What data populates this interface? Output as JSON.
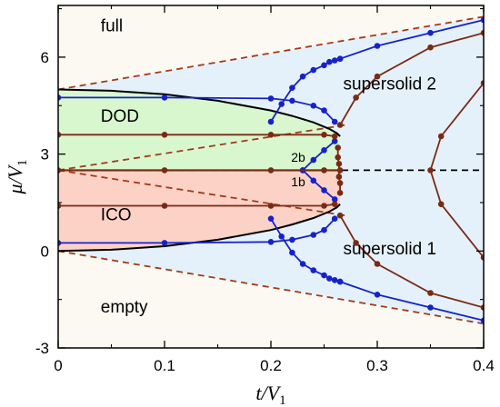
{
  "chart_data": {
    "type": "line",
    "title": "",
    "xlabel": {
      "main": "t/V",
      "sub": "1"
    },
    "ylabel": {
      "main": "μ/V",
      "sub": "1"
    },
    "xlim": [
      0,
      0.4
    ],
    "ylim": [
      -3,
      7.6
    ],
    "x_ticks": [
      0,
      0.1,
      0.2,
      0.3,
      0.4
    ],
    "x_tick_labels": [
      "0",
      "0.1",
      "0.2",
      "0.3",
      "0.4"
    ],
    "y_ticks": [
      -3,
      0,
      3,
      6
    ],
    "y_tick_labels": [
      "-3",
      "0",
      "3",
      "6"
    ],
    "grid": false,
    "colors": {
      "background_full": "#fbf9f2",
      "supersolid_fill": "#e5f1fa",
      "dod_fill": "#d9f7cf",
      "ico_fill": "#fcd2c6",
      "blue": "#1522cc",
      "brown": "#7a2a14",
      "dashed_brown": "#a33a17",
      "black": "#000000"
    },
    "regions": [
      {
        "id": "full",
        "label": "full",
        "at": [
          0.04,
          6.8
        ]
      },
      {
        "id": "dod",
        "label": "DOD",
        "at": [
          0.04,
          4.0
        ]
      },
      {
        "id": "ico",
        "label": "ICO",
        "at": [
          0.04,
          0.95
        ]
      },
      {
        "id": "empty",
        "label": "empty",
        "at": [
          0.04,
          -1.9
        ]
      },
      {
        "id": "supersolid2",
        "label": "supersolid 2",
        "at": [
          0.268,
          5.0
        ]
      },
      {
        "id": "supersolid1",
        "label": "supersolid 1",
        "at": [
          0.268,
          -0.1
        ]
      }
    ],
    "small_labels": [
      {
        "id": "2b",
        "label": "2b",
        "at": [
          0.219,
          2.76
        ]
      },
      {
        "id": "1b",
        "label": "1b",
        "at": [
          0.219,
          2.0
        ]
      }
    ],
    "series": [
      {
        "kind": "dashed",
        "color": "dashed_brown",
        "x": [
          0,
          0.4
        ],
        "y": [
          5.0,
          7.25
        ]
      },
      {
        "kind": "dashed",
        "color": "dashed_brown",
        "x": [
          0,
          0.4
        ],
        "y": [
          0.0,
          -2.25
        ]
      },
      {
        "kind": "dashed",
        "color": "black",
        "x": [
          0,
          0.4
        ],
        "y": [
          2.5,
          2.5
        ]
      },
      {
        "kind": "dashed",
        "color": "dashed_brown",
        "x": [
          0,
          0.27
        ],
        "y": [
          2.5,
          3.9
        ]
      },
      {
        "kind": "dashed",
        "color": "dashed_brown",
        "x": [
          0,
          0.27
        ],
        "y": [
          2.5,
          1.1
        ]
      },
      {
        "kind": "line",
        "color": "black",
        "x": [
          0,
          0.05,
          0.1,
          0.15,
          0.2,
          0.22,
          0.24,
          0.255,
          0.262,
          0.265
        ],
        "y": [
          5.0,
          4.96,
          4.85,
          4.65,
          4.35,
          4.18,
          3.98,
          3.78,
          3.65,
          3.55
        ]
      },
      {
        "kind": "line",
        "color": "black",
        "x": [
          0,
          0.05,
          0.1,
          0.15,
          0.2,
          0.22,
          0.24,
          0.255,
          0.262,
          0.265
        ],
        "y": [
          0.0,
          0.04,
          0.15,
          0.35,
          0.65,
          0.82,
          1.02,
          1.22,
          1.35,
          1.45
        ]
      },
      {
        "kind": "line",
        "color": "black",
        "x": [
          0,
          0.265
        ],
        "y": [
          2.5,
          2.5
        ]
      },
      {
        "kind": "marked",
        "color": "blue",
        "x": [
          0,
          0.1,
          0.2,
          0.22,
          0.24,
          0.25,
          0.26
        ],
        "y": [
          4.75,
          4.75,
          4.72,
          4.65,
          4.5,
          4.35,
          4.0
        ]
      },
      {
        "kind": "marked",
        "color": "blue",
        "x": [
          0,
          0.1,
          0.2,
          0.22,
          0.24,
          0.25,
          0.26
        ],
        "y": [
          0.25,
          0.25,
          0.28,
          0.35,
          0.5,
          0.65,
          1.0
        ]
      },
      {
        "kind": "marked",
        "color": "blue",
        "x": [
          0.2,
          0.21,
          0.22,
          0.23,
          0.24,
          0.25,
          0.255,
          0.26,
          0.265
        ],
        "y": [
          4.0,
          4.55,
          5.05,
          5.4,
          5.6,
          5.75,
          5.85,
          5.9,
          5.95
        ]
      },
      {
        "kind": "marked",
        "color": "blue",
        "x": [
          0.265,
          0.3,
          0.35,
          0.4
        ],
        "y": [
          5.95,
          6.35,
          6.75,
          7.15
        ]
      },
      {
        "kind": "marked",
        "color": "blue",
        "x": [
          0.2,
          0.21,
          0.22,
          0.23,
          0.24,
          0.25,
          0.255,
          0.26,
          0.265
        ],
        "y": [
          1.0,
          0.45,
          -0.05,
          -0.4,
          -0.6,
          -0.75,
          -0.85,
          -0.9,
          -0.95
        ]
      },
      {
        "kind": "marked",
        "color": "blue",
        "x": [
          0.265,
          0.3,
          0.35,
          0.4
        ],
        "y": [
          -0.95,
          -1.35,
          -1.75,
          -2.15
        ]
      },
      {
        "kind": "marked",
        "color": "blue",
        "x": [
          0.23,
          0.24,
          0.25,
          0.26
        ],
        "y": [
          2.5,
          2.82,
          3.12,
          3.4
        ]
      },
      {
        "kind": "marked",
        "color": "blue",
        "x": [
          0.23,
          0.24,
          0.25,
          0.26
        ],
        "y": [
          2.5,
          2.18,
          1.88,
          1.6
        ]
      },
      {
        "kind": "marked",
        "color": "brown",
        "x": [
          0,
          0.1,
          0.2,
          0.25,
          0.26
        ],
        "y": [
          3.6,
          3.6,
          3.6,
          3.6,
          3.55
        ]
      },
      {
        "kind": "marked",
        "color": "brown",
        "x": [
          0,
          0.1,
          0.2,
          0.25,
          0.26
        ],
        "y": [
          1.4,
          1.4,
          1.4,
          1.4,
          1.45
        ]
      },
      {
        "kind": "marked",
        "color": "brown",
        "x": [
          0,
          0.1,
          0.2,
          0.25,
          0.265
        ],
        "y": [
          2.5,
          2.5,
          2.5,
          2.5,
          2.5
        ]
      },
      {
        "kind": "marked",
        "color": "brown",
        "x": [
          0.263,
          0.263,
          0.264,
          0.264,
          0.265,
          0.265
        ],
        "y": [
          3.2,
          2.9,
          2.7,
          2.3,
          2.1,
          1.8
        ]
      },
      {
        "kind": "marked",
        "color": "brown",
        "x": [
          0.265,
          0.28,
          0.3,
          0.35,
          0.4
        ],
        "y": [
          3.9,
          4.75,
          5.4,
          6.3,
          6.75
        ]
      },
      {
        "kind": "marked",
        "color": "brown",
        "x": [
          0.265,
          0.28,
          0.3,
          0.35,
          0.4
        ],
        "y": [
          1.1,
          0.25,
          -0.4,
          -1.3,
          -1.75
        ]
      },
      {
        "kind": "marked",
        "color": "brown",
        "x": [
          0.4,
          0.36,
          0.35,
          0.36,
          0.4
        ],
        "y": [
          5.2,
          3.55,
          2.5,
          1.45,
          -0.2
        ]
      }
    ]
  }
}
